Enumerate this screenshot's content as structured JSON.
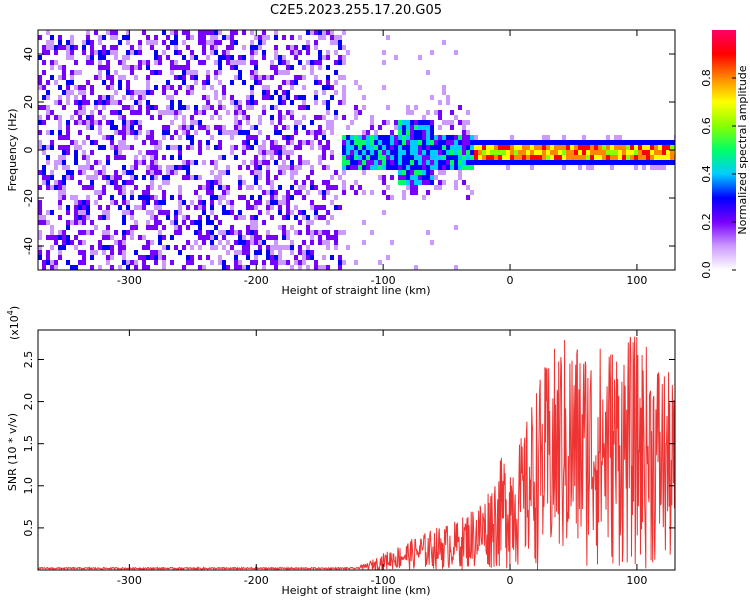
{
  "title": "C2E5.2023.255.17.20.G05",
  "chart_data": [
    {
      "type": "heatmap",
      "xlabel": "Height of straight line (km)",
      "ylabel": "Frequency (Hz)",
      "xlim": [
        -372,
        130
      ],
      "ylim": [
        -50,
        50
      ],
      "xticks": [
        -300,
        -200,
        -100,
        0,
        100
      ],
      "yticks": [
        -40,
        -20,
        0,
        20,
        40
      ],
      "colorbar": {
        "label": "Normalized spectral amplitude",
        "range": [
          0.0,
          1.0
        ],
        "ticks": [
          "0.0",
          "0.2",
          "0.4",
          "0.6",
          "0.8"
        ],
        "colors": [
          "#ffffff",
          "#cc99ff",
          "#7700ff",
          "#0000ff",
          "#00ccff",
          "#00ff66",
          "#88ff00",
          "#ffff00",
          "#ff8800",
          "#ff0000",
          "#ff0066"
        ]
      },
      "regions": [
        {
          "x_range": [
            -372,
            -135
          ],
          "freq_range": [
            -50,
            50
          ],
          "amplitude": 0.08,
          "note": "broadband noise"
        },
        {
          "x_range": [
            -135,
            -30
          ],
          "freq_range": [
            -10,
            12
          ],
          "amplitude": 0.35
        },
        {
          "x_range": [
            -30,
            130
          ],
          "freq_range": [
            -3,
            3
          ],
          "amplitude": 0.7
        }
      ]
    },
    {
      "type": "line",
      "xlabel": "Height of straight line (km)",
      "ylabel": "SNR (10 * v/v)",
      "scale_label": "(x10",
      "scale_exp": "4",
      "scale_close": ")",
      "xlim": [
        -372,
        130
      ],
      "ylim": [
        0,
        2.85
      ],
      "xticks": [
        -300,
        -200,
        -100,
        0,
        100
      ],
      "yticks": [
        "0.5",
        "1.0",
        "1.5",
        "2.0",
        "2.5"
      ],
      "color": "#ee3333",
      "envelope": [
        {
          "x": -372,
          "y": 0.02
        },
        {
          "x": -120,
          "y": 0.02
        },
        {
          "x": -100,
          "y": 0.2
        },
        {
          "x": -80,
          "y": 0.35
        },
        {
          "x": -60,
          "y": 0.5
        },
        {
          "x": -40,
          "y": 0.6
        },
        {
          "x": -20,
          "y": 0.9
        },
        {
          "x": -5,
          "y": 1.4
        },
        {
          "x": 10,
          "y": 1.6
        },
        {
          "x": 20,
          "y": 2.2
        },
        {
          "x": 40,
          "y": 2.8
        },
        {
          "x": 70,
          "y": 2.7
        },
        {
          "x": 100,
          "y": 2.8
        },
        {
          "x": 120,
          "y": 2.5
        },
        {
          "x": 130,
          "y": 2.2
        }
      ]
    }
  ]
}
